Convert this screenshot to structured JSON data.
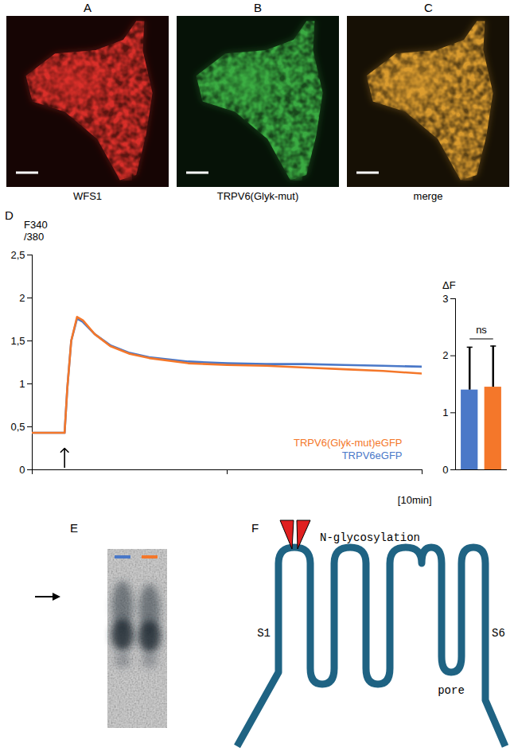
{
  "images": [
    {
      "letter": "A",
      "caption": "WFS1",
      "color": "#e0302a"
    },
    {
      "letter": "B",
      "caption": "TRPV6(Glyk-mut)",
      "color": "#3cb043"
    },
    {
      "letter": "C",
      "caption": "merge",
      "color": "#e0a030"
    }
  ],
  "chart_data": [
    {
      "letter": "D",
      "type": "line",
      "ylabel": "F340/380",
      "xlabel": "[10min]",
      "x": [
        0,
        0.83,
        0.9,
        1.0,
        1.15,
        1.3,
        1.6,
        2,
        2.5,
        3,
        4,
        5,
        6,
        7,
        8,
        9,
        10
      ],
      "series": [
        {
          "name": "TRPV6(Glyk-mut)eGFP",
          "color": "#f4772a",
          "values": [
            0.43,
            0.43,
            0.95,
            1.5,
            1.78,
            1.74,
            1.58,
            1.44,
            1.35,
            1.3,
            1.24,
            1.22,
            1.21,
            1.19,
            1.17,
            1.15,
            1.12
          ]
        },
        {
          "name": "TRPV6eGFP",
          "color": "#4a78c8",
          "values": [
            0.43,
            0.43,
            0.95,
            1.5,
            1.76,
            1.72,
            1.58,
            1.45,
            1.36,
            1.31,
            1.26,
            1.24,
            1.23,
            1.23,
            1.22,
            1.21,
            1.2
          ]
        }
      ],
      "stimulus_time": 0.83,
      "xlim": [
        0,
        10
      ],
      "xticks": [
        0,
        5,
        10
      ],
      "ylim": [
        0,
        2.5
      ],
      "yticks": [
        0,
        {
          "value": 0.5,
          "label": "0,5"
        },
        1,
        {
          "value": 1.5,
          "label": "1,5"
        },
        2,
        {
          "value": 2.5,
          "label": "2,5"
        }
      ],
      "tick_labels": "y",
      "legend": "lower right",
      "grid": false
    },
    {
      "type": "bar",
      "ylabel": "ΔF",
      "categories": [
        null,
        null
      ],
      "values": [
        1.4,
        1.45
      ],
      "errors": [
        0.75,
        0.72
      ],
      "colors": [
        "#4a78c8",
        "#f4772a"
      ],
      "ylim": [
        0,
        3
      ],
      "yticks": [
        0,
        1,
        2,
        3
      ],
      "annotation": "ns",
      "grid": false
    }
  ],
  "blot": {
    "letter": "E",
    "lanes": [
      {
        "color": "#4a78c8"
      },
      {
        "color": "#f4772a"
      }
    ]
  },
  "diagram": {
    "letter": "F",
    "labels": {
      "glycosylation": "N-glycosylation",
      "first_segment": "S1",
      "last_segment": "S6",
      "pore": "pore"
    }
  }
}
